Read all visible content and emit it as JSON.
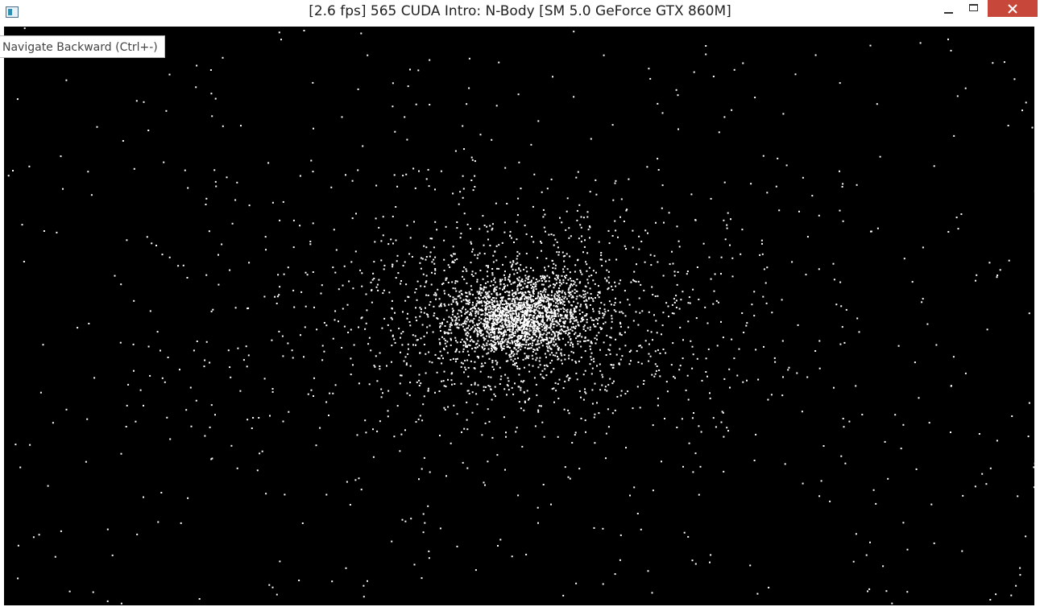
{
  "window": {
    "title": "[2.6 fps] 565 CUDA Intro: N-Body [SM 5.0 GeForce GTX 860M]",
    "icon": "app-window-icon",
    "controls": [
      "minimize-icon",
      "maximize-icon",
      "close-icon"
    ],
    "close_color": "#c7483b"
  },
  "tooltip": {
    "text": "Navigate Backward (Ctrl+-)"
  },
  "viewport": {
    "background": "#000000",
    "particle_color": "#ffffff",
    "content": "n-body particle simulation"
  }
}
